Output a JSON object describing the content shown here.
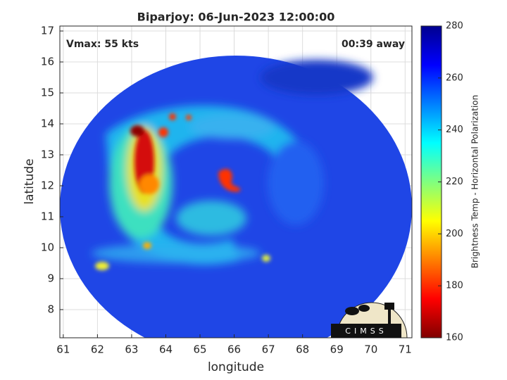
{
  "chart_data": {
    "type": "image",
    "title": "Biparjoy: 06-Jun-2023 12:00:00",
    "xlabel": "longitude",
    "ylabel": "latitude",
    "annotations": [
      "Vmax: 55 kts",
      "00:39 away"
    ],
    "logo": "CIMSS",
    "xlim": [
      60.9,
      71.2
    ],
    "xticks": [
      61,
      62,
      63,
      64,
      65,
      66,
      67,
      68,
      69,
      70,
      71
    ],
    "ylim": [
      7.09,
      17.16
    ],
    "yticks": [
      8,
      9,
      10,
      11,
      12,
      13,
      14,
      15,
      16,
      17
    ],
    "grid": true,
    "colorbar": {
      "label": "Brightness Temp - Horizontal Polarization",
      "colormap": "jet_r",
      "lim": [
        160,
        280
      ],
      "ticks": [
        160,
        180,
        200,
        220,
        240,
        260,
        280
      ]
    }
  }
}
